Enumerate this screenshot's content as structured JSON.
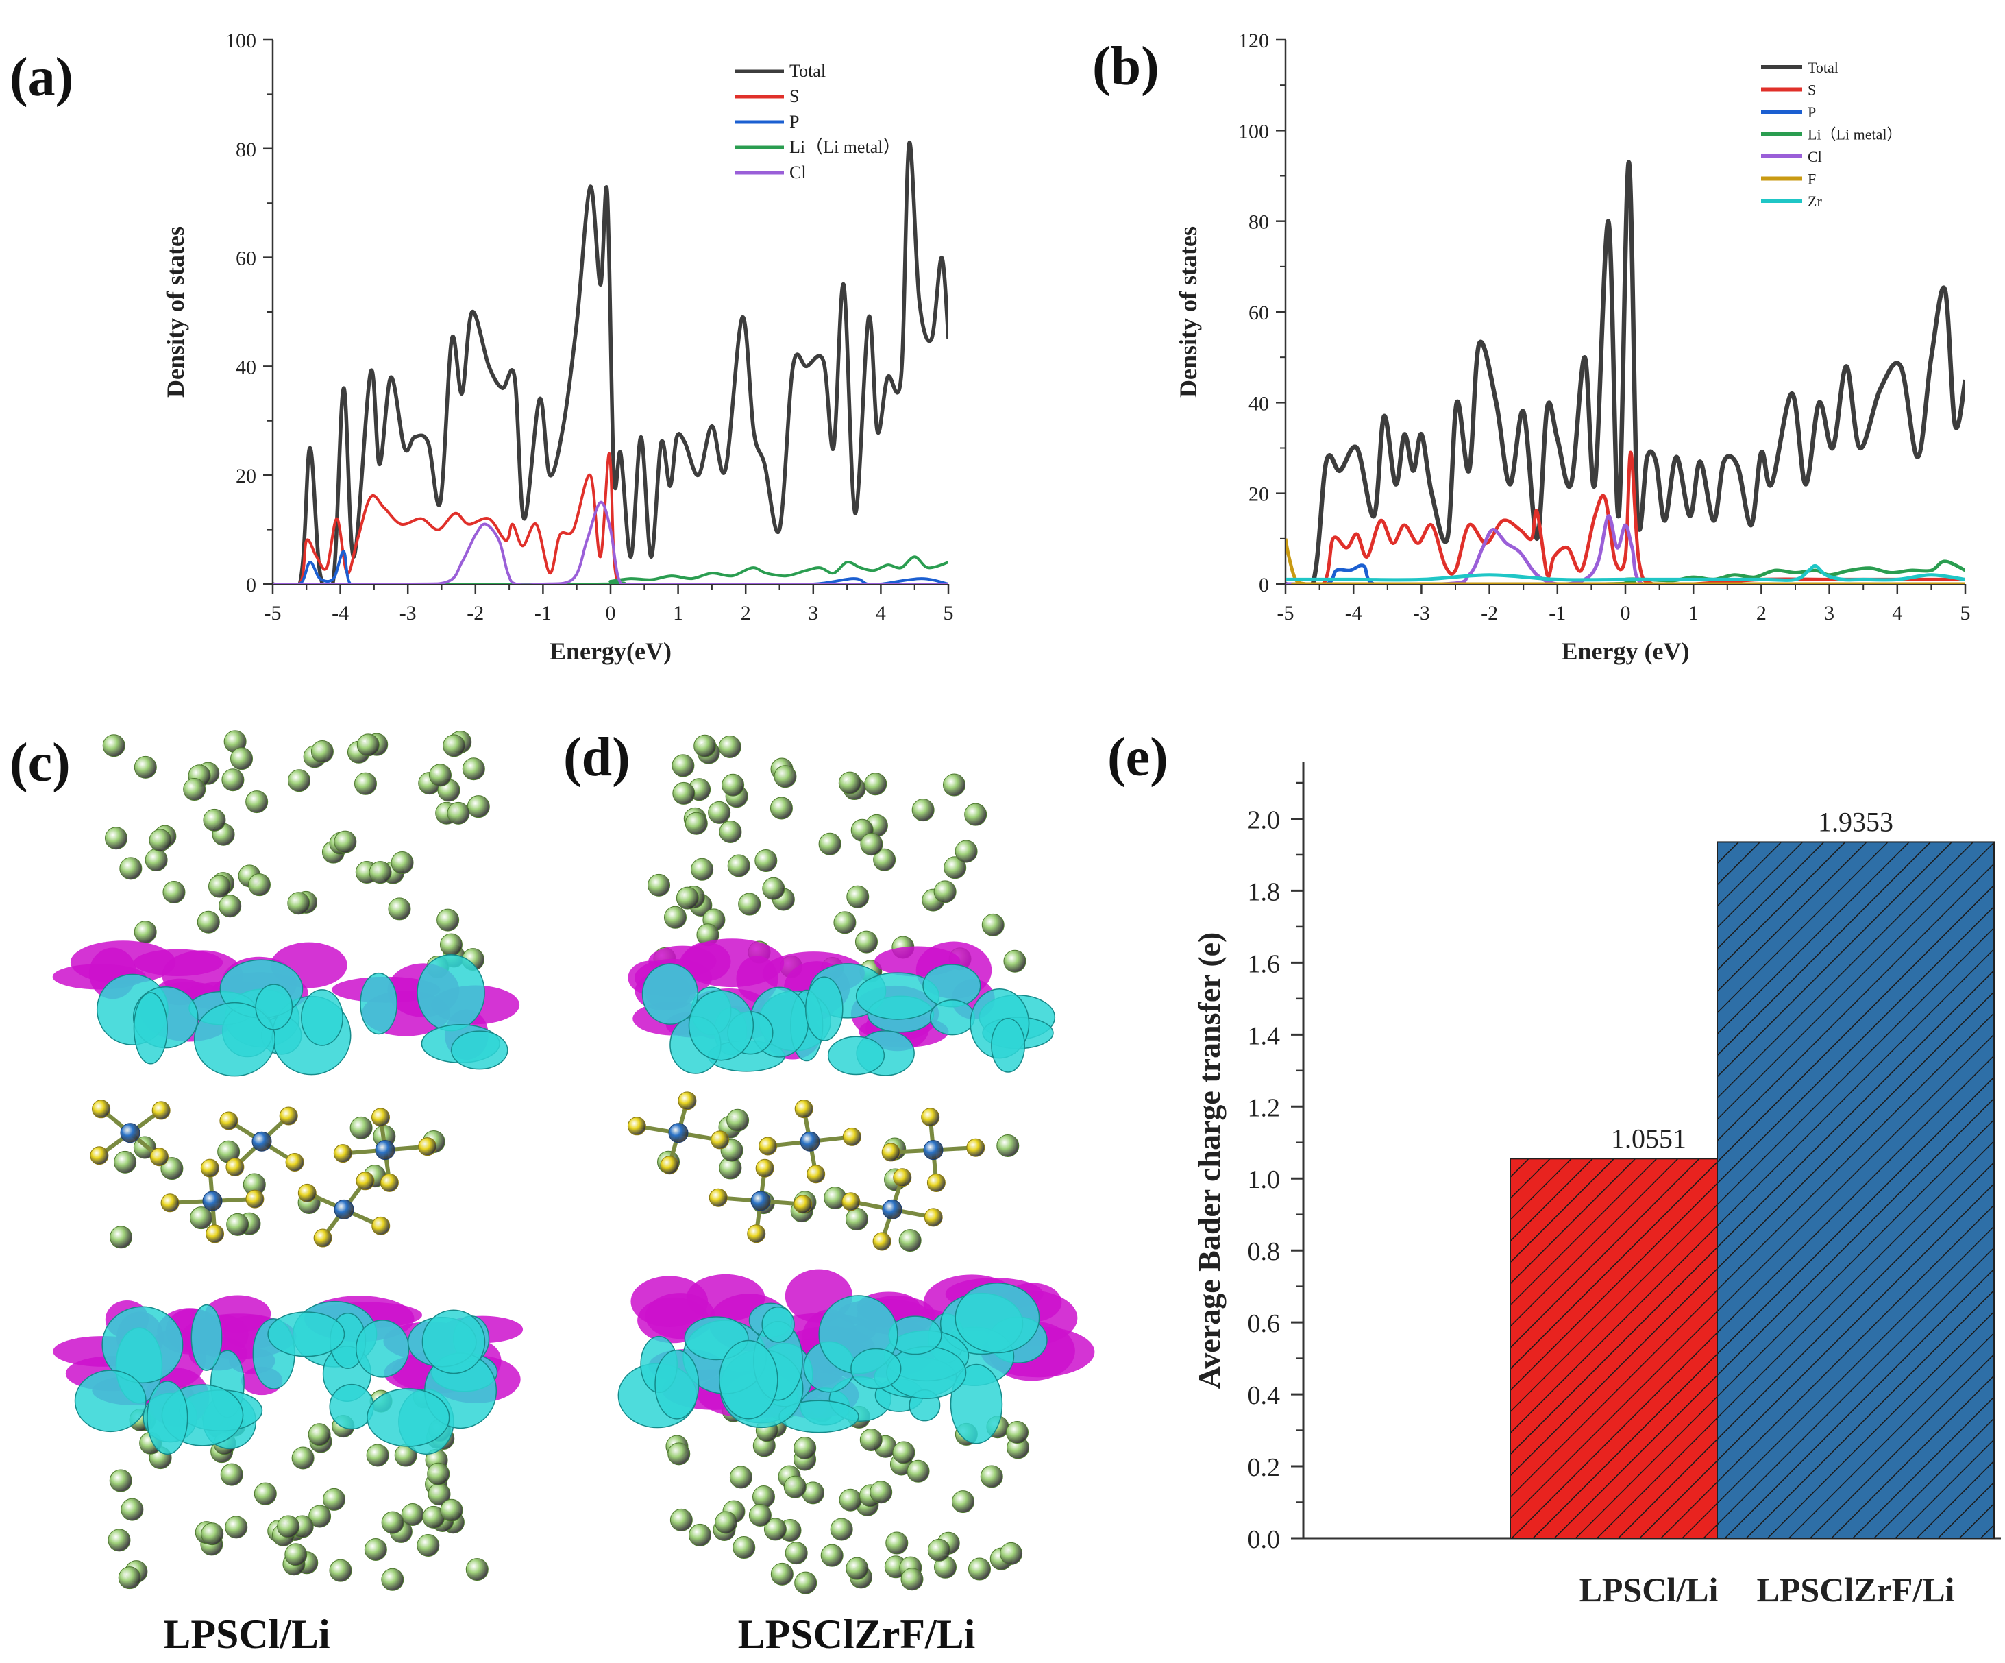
{
  "panels": {
    "a": "(a)",
    "b": "(b)",
    "c": "(c)",
    "d": "(d)",
    "e": "(e)"
  },
  "structures": {
    "c_caption": "LPSCl/Li",
    "d_caption": "LPSClZrF/Li",
    "atom_colors": {
      "li": "#9fd17a",
      "s": "#e9d51f",
      "p": "#2a72c6",
      "iso_pos": "#cc11cc",
      "iso_neg": "#2fd6d6"
    }
  },
  "chart_data": [
    {
      "id": "a",
      "type": "line",
      "xlabel": "Energy(eV)",
      "ylabel": "Density of states",
      "xlim": [
        -5,
        5
      ],
      "ylim": [
        0,
        100
      ],
      "xticks": [
        -5,
        -4,
        -3,
        -2,
        -1,
        0,
        1,
        2,
        3,
        4,
        5
      ],
      "yticks": [
        0,
        20,
        40,
        60,
        80,
        100
      ],
      "legend_position": "top-right",
      "series": [
        {
          "name": "Total",
          "color": "#3d3d3d",
          "x": [
            -5,
            -4.6,
            -4.45,
            -4.3,
            -4.1,
            -3.95,
            -3.8,
            -3.55,
            -3.42,
            -3.25,
            -3.05,
            -2.9,
            -2.7,
            -2.52,
            -2.35,
            -2.2,
            -2.05,
            -1.8,
            -1.6,
            -1.42,
            -1.28,
            -1.05,
            -0.9,
            -0.7,
            -0.5,
            -0.3,
            -0.15,
            -0.05,
            0.05,
            0.15,
            0.3,
            0.45,
            0.6,
            0.75,
            0.88,
            0.98,
            1.1,
            1.3,
            1.5,
            1.7,
            1.95,
            2.12,
            2.28,
            2.5,
            2.7,
            2.9,
            3.15,
            3.3,
            3.45,
            3.62,
            3.82,
            3.95,
            4.1,
            4.3,
            4.42,
            4.57,
            4.75,
            4.9,
            5
          ],
          "values": [
            0,
            0,
            25,
            2,
            1,
            36,
            5,
            39,
            22,
            38,
            25,
            27,
            26,
            15,
            45,
            35,
            50,
            40,
            36,
            38,
            12,
            34,
            20,
            29,
            48,
            73,
            55,
            72,
            20,
            24,
            5,
            27,
            5,
            26,
            18,
            27,
            26,
            20,
            29,
            21,
            49,
            28,
            22,
            10,
            40,
            40,
            41,
            25,
            55,
            13,
            49,
            28,
            38,
            38,
            81,
            52,
            45,
            60,
            45
          ]
        },
        {
          "name": "S",
          "color": "#e0302a",
          "x": [
            -5,
            -4.6,
            -4.5,
            -4.35,
            -4.2,
            -4.05,
            -3.9,
            -3.75,
            -3.55,
            -3.35,
            -3.1,
            -2.8,
            -2.55,
            -2.3,
            -2.1,
            -1.8,
            -1.55,
            -1.45,
            -1.3,
            -1.1,
            -0.9,
            -0.75,
            -0.55,
            -0.3,
            -0.15,
            -0.02,
            0.05,
            0.12,
            0.2,
            0.5,
            1,
            1.5,
            2,
            3,
            4,
            5
          ],
          "values": [
            0,
            0,
            8,
            5,
            3,
            12,
            2,
            8,
            16,
            14,
            11,
            12,
            10,
            13,
            11,
            12,
            8,
            11,
            7,
            11,
            2,
            9,
            10,
            20,
            5,
            24,
            5,
            0,
            0,
            0,
            0,
            0,
            0,
            0,
            0,
            0
          ]
        },
        {
          "name": "P",
          "color": "#1b5fd1",
          "x": [
            -5,
            -4.6,
            -4.45,
            -4.3,
            -4.1,
            -3.95,
            -3.85,
            -3.5,
            -2,
            -1,
            0,
            1,
            2,
            3,
            3.6,
            3.8,
            4,
            4.6,
            5
          ],
          "values": [
            0,
            0,
            4,
            1,
            1,
            6,
            0,
            0,
            0,
            0,
            0,
            0,
            0,
            0,
            1,
            0,
            0,
            1,
            0
          ]
        },
        {
          "name": "Li（Li metal）",
          "color": "#2a9d50",
          "x": [
            -5,
            -0.2,
            0,
            0.3,
            0.6,
            0.9,
            1.2,
            1.5,
            1.8,
            2.1,
            2.3,
            2.6,
            2.9,
            3.1,
            3.3,
            3.5,
            3.7,
            3.9,
            4.1,
            4.3,
            4.5,
            4.7,
            5
          ],
          "values": [
            0,
            0,
            0.5,
            1,
            0.8,
            1.5,
            1,
            2,
            1.5,
            3,
            2,
            1.5,
            2.5,
            3,
            2,
            4,
            3,
            2.5,
            3.5,
            3,
            5,
            3,
            4
          ]
        },
        {
          "name": "Cl",
          "color": "#9a5fd8",
          "x": [
            -5,
            -3,
            -2.4,
            -2.2,
            -2.0,
            -1.85,
            -1.65,
            -1.52,
            -1.4,
            -1,
            -0.55,
            -0.35,
            -0.15,
            0,
            0.12,
            0.3,
            1,
            5
          ],
          "values": [
            0,
            0,
            0.5,
            4,
            9,
            11,
            8,
            2,
            0,
            0,
            1,
            8,
            15,
            10,
            1,
            0,
            0,
            0
          ]
        }
      ]
    },
    {
      "id": "b",
      "type": "line",
      "xlabel": "Energy (eV)",
      "ylabel": "Density of states",
      "xlim": [
        -5,
        5
      ],
      "ylim": [
        0,
        120
      ],
      "xticks": [
        -5,
        -4,
        -3,
        -2,
        -1,
        0,
        1,
        2,
        3,
        4,
        5
      ],
      "yticks": [
        0,
        20,
        40,
        60,
        80,
        100,
        120
      ],
      "legend_position": "top-right",
      "series": [
        {
          "name": "Total",
          "color": "#3d3d3d",
          "x": [
            -5,
            -4.6,
            -4.4,
            -4.2,
            -3.95,
            -3.7,
            -3.55,
            -3.38,
            -3.25,
            -3.12,
            -3.0,
            -2.85,
            -2.62,
            -2.48,
            -2.3,
            -2.15,
            -1.9,
            -1.7,
            -1.5,
            -1.3,
            -1.15,
            -1.0,
            -0.8,
            -0.6,
            -0.45,
            -0.25,
            -0.1,
            0.05,
            0.18,
            0.32,
            0.45,
            0.58,
            0.75,
            0.95,
            1.1,
            1.3,
            1.45,
            1.65,
            1.85,
            2.0,
            2.15,
            2.45,
            2.65,
            2.85,
            3.05,
            3.25,
            3.45,
            3.75,
            4.05,
            4.3,
            4.5,
            4.7,
            4.85,
            5
          ],
          "values": [
            0,
            0,
            27,
            25,
            30,
            15,
            37,
            22,
            33,
            25,
            33,
            20,
            10,
            40,
            25,
            53,
            40,
            22,
            38,
            10,
            39,
            32,
            22,
            50,
            22,
            80,
            15,
            93,
            15,
            28,
            27,
            14,
            28,
            15,
            27,
            14,
            27,
            26,
            13,
            29,
            22,
            42,
            22,
            40,
            30,
            48,
            30,
            43,
            48,
            28,
            50,
            65,
            35,
            45
          ]
        },
        {
          "name": "S",
          "color": "#e0302a",
          "x": [
            -5,
            -4.45,
            -4.3,
            -4.1,
            -3.95,
            -3.8,
            -3.6,
            -3.42,
            -3.25,
            -3.05,
            -2.85,
            -2.65,
            -2.5,
            -2.3,
            -2.05,
            -1.8,
            -1.55,
            -1.38,
            -1.3,
            -1.15,
            -1.05,
            -0.85,
            -0.65,
            -0.45,
            -0.3,
            -0.15,
            0,
            0.08,
            0.2,
            0.4,
            1,
            2,
            3,
            4,
            5
          ],
          "values": [
            0,
            0,
            10,
            8,
            11,
            6,
            14,
            9,
            13,
            9,
            13,
            4,
            3,
            13,
            9,
            14,
            12,
            10,
            16,
            2,
            6,
            8,
            3,
            15,
            19,
            5,
            6,
            29,
            5,
            0,
            0,
            1,
            1,
            1,
            1
          ]
        },
        {
          "name": "P",
          "color": "#1b5fd1",
          "x": [
            -5,
            -4.4,
            -4.25,
            -4.05,
            -3.85,
            -3.7,
            -3,
            -2,
            -1,
            0,
            1,
            2,
            3,
            4,
            5
          ],
          "values": [
            0,
            0,
            3,
            3,
            4,
            0,
            0,
            0,
            0,
            0,
            0,
            0,
            0,
            0,
            0
          ]
        },
        {
          "name": "Li（Li metal）",
          "color": "#2a9d50",
          "x": [
            -5,
            -0.3,
            0,
            0.3,
            0.7,
            1.0,
            1.3,
            1.6,
            1.9,
            2.2,
            2.5,
            2.8,
            3.0,
            3.3,
            3.6,
            3.9,
            4.2,
            4.5,
            4.7,
            5
          ],
          "values": [
            0,
            0,
            1,
            1,
            0.8,
            1.5,
            1,
            2,
            1.5,
            3,
            2.5,
            3,
            2,
            3,
            3.5,
            2.5,
            3,
            3,
            5,
            3
          ]
        },
        {
          "name": "Cl",
          "color": "#9a5fd8",
          "x": [
            -5,
            -2.7,
            -2.3,
            -2.1,
            -1.95,
            -1.75,
            -1.55,
            -1.3,
            -1,
            -0.6,
            -0.4,
            -0.25,
            -0.12,
            0,
            0.1,
            0.25,
            1,
            5
          ],
          "values": [
            0,
            0,
            2,
            8,
            12,
            9,
            7,
            2,
            0,
            1,
            5,
            15,
            8,
            13,
            8,
            0,
            0,
            0
          ]
        },
        {
          "name": "F",
          "color": "#c99a12",
          "x": [
            -5,
            -4.95,
            -4.85,
            -4.7,
            -4.5,
            0,
            2,
            3,
            4,
            5
          ],
          "values": [
            10,
            6,
            1,
            0,
            0,
            0,
            0,
            0,
            0,
            0
          ]
        },
        {
          "name": "Zr",
          "color": "#1fc6c6",
          "x": [
            -5,
            -4,
            -3,
            -2,
            -1,
            0,
            1,
            2,
            2.5,
            2.7,
            2.8,
            2.95,
            3.2,
            3.5,
            4,
            4.5,
            5
          ],
          "values": [
            1,
            1,
            1,
            2,
            1,
            1,
            1,
            1,
            1,
            3,
            4,
            2,
            1,
            1,
            1,
            2,
            1
          ]
        }
      ]
    },
    {
      "id": "e",
      "type": "bar",
      "categories": [
        "LPSCl/Li",
        "LPSClZrF/Li"
      ],
      "values": [
        1.0551,
        1.9353
      ],
      "value_labels": [
        "1.0551",
        "1.9353"
      ],
      "colors": [
        "#e8231f",
        "#2e6fa7"
      ],
      "ylabel": "Average Bader charge transfer (e)",
      "xlabel": "",
      "ylim": [
        0,
        2.1
      ],
      "yticks": [
        "0.0",
        "0.2",
        "0.4",
        "0.6",
        "0.8",
        "1.0",
        "1.2",
        "1.4",
        "1.6",
        "1.8",
        "2.0"
      ],
      "pattern": "hatched"
    }
  ]
}
